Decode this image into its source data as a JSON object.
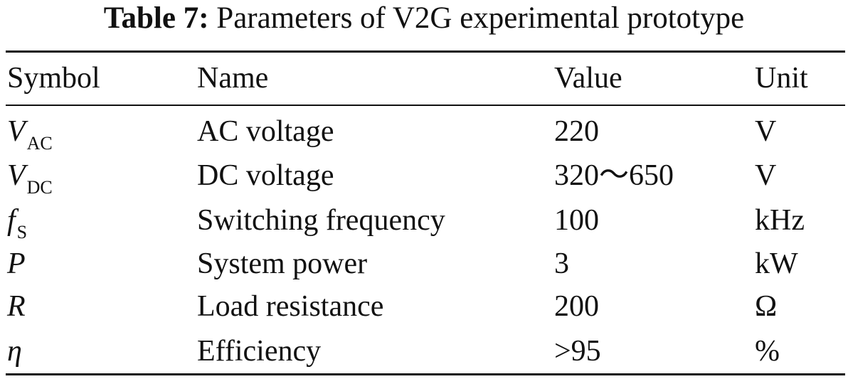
{
  "caption": {
    "label": "Table 7:",
    "text": "Parameters of V2G experimental prototype"
  },
  "headers": {
    "symbol": "Symbol",
    "name": "Name",
    "value": "Value",
    "unit": "Unit"
  },
  "rows": [
    {
      "symbol": "V",
      "subscript": "AC",
      "name": "AC voltage",
      "value": "220",
      "unit": "V"
    },
    {
      "symbol": "V",
      "subscript": "DC",
      "name": "DC voltage",
      "value": "320～650",
      "unit": "V"
    },
    {
      "symbol": "f",
      "subscript": "S",
      "name": "Switching frequency",
      "value": "100",
      "unit": "kHz"
    },
    {
      "symbol": "P",
      "subscript": "",
      "name": "System power",
      "value": "3",
      "unit": "kW"
    },
    {
      "symbol": "R",
      "subscript": "",
      "name": "Load resistance",
      "value": "200",
      "unit": "Ω"
    },
    {
      "symbol": "η",
      "subscript": "",
      "name": "Efficiency",
      "value": ">95",
      "unit": "%"
    }
  ]
}
